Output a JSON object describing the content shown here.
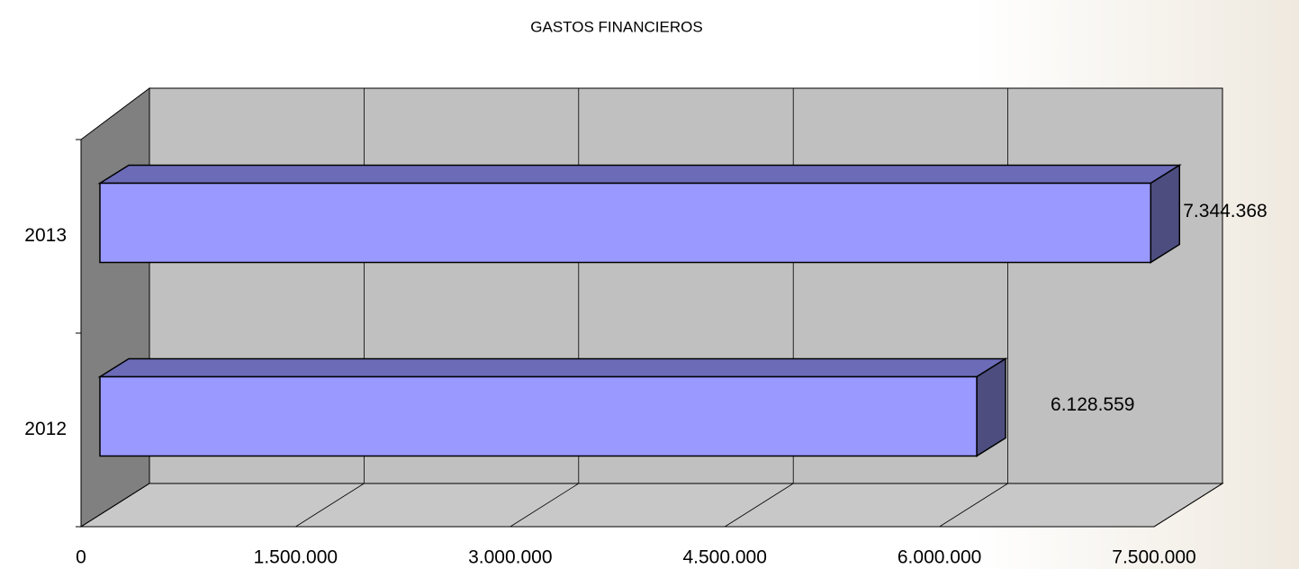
{
  "chart_data": {
    "type": "bar3d_horizontal",
    "title": "GASTOS FINANCIEROS",
    "categories": [
      "2012",
      "2013"
    ],
    "values": [
      6128559,
      7344368
    ],
    "value_labels": [
      "6.128.559",
      "7.344.368"
    ],
    "color": "#9999ff",
    "xlim": [
      0,
      7500000
    ],
    "xticks": [
      0,
      {
        "value": 1500000,
        "label": "1.500.000"
      },
      {
        "value": 3000000,
        "label": "3.000.000"
      },
      {
        "value": 4500000,
        "label": "4.500.000"
      },
      {
        "value": 6000000,
        "label": "6.000.000"
      },
      {
        "value": 7500000,
        "label": "7.500.000"
      }
    ],
    "grid": true
  }
}
